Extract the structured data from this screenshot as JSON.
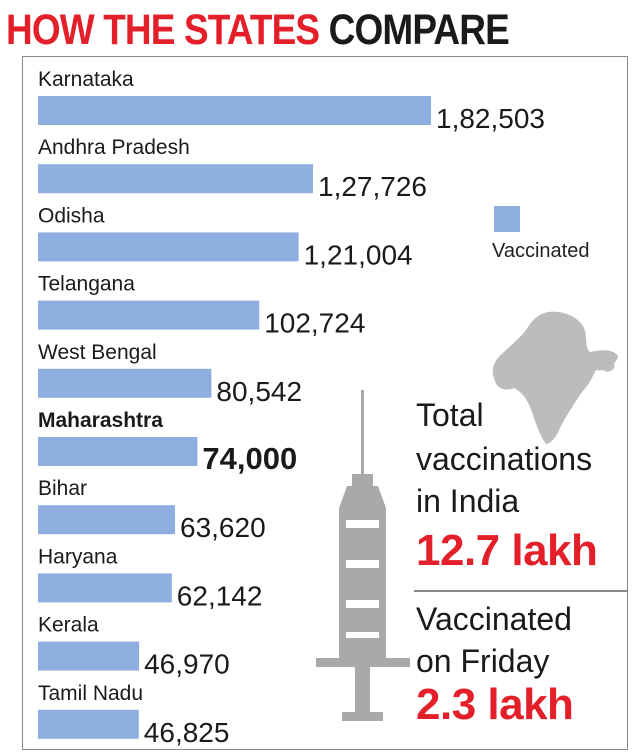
{
  "header": {
    "title_part1": "HOW THE STATES",
    "title_part2": "COMPARE"
  },
  "legend": {
    "label": "Vaccinated",
    "color": "#8eaee0"
  },
  "total": {
    "text_lines": [
      "Total",
      "vaccinations",
      "in India"
    ],
    "value": "12.7 lakh"
  },
  "friday": {
    "text_lines": [
      "Vaccinated",
      "on Friday"
    ],
    "value": "2.3 lakh"
  },
  "colors": {
    "bar": "#8eaee0",
    "accent_red": "#e3202a",
    "text": "#1a1a1a",
    "map": "#bcbcbc",
    "syringe": "#a9a9a9"
  },
  "chart_data": {
    "type": "bar",
    "orientation": "horizontal",
    "title": "HOW THE STATES COMPARE",
    "series": [
      {
        "name": "Vaccinated"
      }
    ],
    "categories": [
      "Karnataka",
      "Andhra Pradesh",
      "Odisha",
      "Telangana",
      "West Bengal",
      "Maharashtra",
      "Bihar",
      "Haryana",
      "Kerala",
      "Tamil Nadu"
    ],
    "values": [
      182503,
      127726,
      121004,
      102724,
      80542,
      74000,
      63620,
      62142,
      46970,
      46825
    ],
    "value_labels": [
      "1,82,503",
      "1,27,726",
      "1,21,004",
      "102,724",
      "80,542",
      "74,000",
      "63,620",
      "62,142",
      "46,970",
      "46,825"
    ],
    "highlight_category": "Maharashtra"
  }
}
